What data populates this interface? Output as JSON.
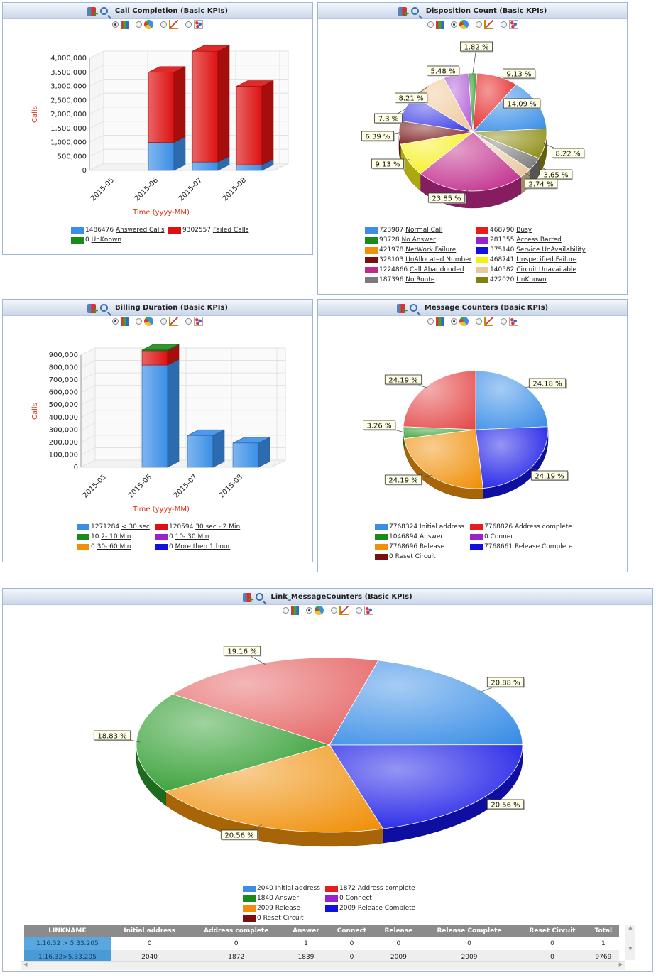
{
  "toolbar": {
    "add_icon": "add-chart-icon",
    "zoom_icon": "zoom-in-icon"
  },
  "panels": [
    {
      "id": "call_completion",
      "title": "Call Completion (Basic KPIs)"
    },
    {
      "id": "disposition_count",
      "title": "Disposition Count (Basic KPIs)"
    },
    {
      "id": "billing_duration",
      "title": "Billing Duration (Basic KPIs)"
    },
    {
      "id": "message_counters",
      "title": "Message Counters (Basic KPIs)"
    },
    {
      "id": "link_message_counters",
      "title": "Link_MessageCounters (Basic KPIs)"
    }
  ],
  "chart_types": [
    "bar",
    "pie",
    "line",
    "scatter"
  ],
  "chart_data": [
    {
      "type": "bar",
      "stacked": true,
      "title": "Call Completion (Basic KPIs)",
      "xlabel": "Time (yyyy-MM)",
      "ylabel": "Calls",
      "categories": [
        "2015-05",
        "2015-06",
        "2015-07",
        "2015-08"
      ],
      "ylim": [
        0,
        4000000
      ],
      "yticks": [
        "0",
        "500,000",
        "1,000,000",
        "1,500,000",
        "2,000,000",
        "2,500,000",
        "3,000,000",
        "3,500,000",
        "4,000,000"
      ],
      "series": [
        {
          "name": "Answered Calls",
          "color": "#3a8ee6",
          "values": [
            0,
            1000000,
            300000,
            200000
          ]
        },
        {
          "name": "Failed Calls",
          "color": "#dd1111",
          "values": [
            0,
            2500000,
            3950000,
            2800000
          ]
        },
        {
          "name": "UnKnown",
          "color": "#1a8a1a",
          "values": [
            0,
            0,
            0,
            0
          ]
        }
      ],
      "legend": [
        {
          "value": "1486476",
          "name": "Answered Calls",
          "color": "#3a8ee6"
        },
        {
          "value": "9302557",
          "name": "Failed Calls",
          "color": "#dd1111"
        },
        {
          "value": "0",
          "name": "UnKnown",
          "color": "#1a8a1a"
        }
      ]
    },
    {
      "type": "pie",
      "title": "Disposition Count (Basic KPIs)",
      "slices": [
        {
          "name": "Busy",
          "value": 468790,
          "label": "9.13 %",
          "color": "#e51d1d"
        },
        {
          "name": "Normal Call",
          "value": 723987,
          "label": "14.09 %",
          "color": "#3a8ee6"
        },
        {
          "name": "UnKnown",
          "value": 422020,
          "label": "8.22 %",
          "color": "#8b8b10"
        },
        {
          "name": "No Route",
          "value": 187396,
          "label": "3.65 %",
          "color": "#7a7a7a"
        },
        {
          "name": "Circuit Unavailable",
          "value": 140582,
          "label": "2.74 %",
          "color": "#e8c79a"
        },
        {
          "name": "Call Abandonded",
          "value": 1224866,
          "label": "23.85 %",
          "color": "#c02a8a"
        },
        {
          "name": "Unspecified Failure",
          "value": 468741,
          "label": "9.13 %",
          "color": "#f5f014"
        },
        {
          "name": "UnAllocated Number",
          "value": 328103,
          "label": "6.39 %",
          "color": "#7a1a1a"
        },
        {
          "name": "Service UnAvailability",
          "value": 375140,
          "label": "7.3 %",
          "color": "#3a3ae6"
        },
        {
          "name": "NetWork Failure",
          "value": 421978,
          "label": "8.21 %",
          "color": "#f0c898"
        },
        {
          "name": "Access Barred",
          "value": 281355,
          "label": "5.48 %",
          "color": "#b05ad8"
        },
        {
          "name": "No Answer",
          "value": 93728,
          "label": "1.82 %",
          "color": "#1a8a1a"
        }
      ],
      "legend": [
        {
          "value": "723987",
          "name": "Normal Call",
          "color": "#3a8ee6"
        },
        {
          "value": "468790",
          "name": "Busy",
          "color": "#e51d1d"
        },
        {
          "value": "93728",
          "name": "No Answer",
          "color": "#1a8a1a"
        },
        {
          "value": "281355",
          "name": "Access Barred",
          "color": "#9a22cc"
        },
        {
          "value": "421978",
          "name": "NetWork Failure",
          "color": "#f0900a"
        },
        {
          "value": "375140",
          "name": "Service UnAvailability",
          "color": "#1010e0"
        },
        {
          "value": "328103",
          "name": "UnAllocated Number",
          "color": "#7a0f0f"
        },
        {
          "value": "468741",
          "name": "Unspecified Failure",
          "color": "#f5f014"
        },
        {
          "value": "1224866",
          "name": "Call Abandonded",
          "color": "#c02a8a"
        },
        {
          "value": "140582",
          "name": "Circuit Unavailable",
          "color": "#e8c79a"
        },
        {
          "value": "187396",
          "name": "No Route",
          "color": "#7a7a7a"
        },
        {
          "value": "422020",
          "name": "UnKnown",
          "color": "#808010"
        }
      ]
    },
    {
      "type": "bar",
      "stacked": true,
      "title": "Billing Duration (Basic KPIs)",
      "xlabel": "Time (yyyy-MM)",
      "ylabel": "Calls",
      "categories": [
        "2015-05",
        "2015-06",
        "2015-07",
        "2015-08"
      ],
      "ylim": [
        0,
        900000
      ],
      "yticks": [
        "0",
        "100,000",
        "200,000",
        "300,000",
        "400,000",
        "500,000",
        "600,000",
        "700,000",
        "800,000",
        "900,000"
      ],
      "series": [
        {
          "name": "< 30 sec",
          "color": "#3a8ee6",
          "values": [
            0,
            820000,
            255000,
            195000
          ]
        },
        {
          "name": "30 sec - 2 Min",
          "color": "#dd1111",
          "values": [
            0,
            115000,
            0,
            0
          ]
        },
        {
          "name": "2- 10 Min",
          "color": "#1a8a1a",
          "values": [
            0,
            10,
            0,
            0
          ]
        }
      ],
      "legend": [
        {
          "value": "1271284",
          "name": "< 30 sec",
          "color": "#3a8ee6"
        },
        {
          "value": "120594",
          "name": "30 sec - 2 Min",
          "color": "#dd1111"
        },
        {
          "value": "10",
          "name": "2- 10 Min",
          "color": "#1a8a1a"
        },
        {
          "value": "0",
          "name": "10- 30 Min",
          "color": "#9a22cc"
        },
        {
          "value": "0",
          "name": "30- 60 Min",
          "color": "#f0900a"
        },
        {
          "value": "0",
          "name": "More then 1 hour",
          "color": "#1010e0"
        }
      ]
    },
    {
      "type": "pie",
      "title": "Message Counters (Basic KPIs)",
      "slices": [
        {
          "name": "Initial address",
          "value": 7768324,
          "label": "24.18 %",
          "color": "#3a8ee6"
        },
        {
          "name": "Release Complete",
          "value": 7768661,
          "label": "24.19 %",
          "color": "#1414e6"
        },
        {
          "name": "Release",
          "value": 7768696,
          "label": "24.19 %",
          "color": "#f0900a"
        },
        {
          "name": "Answer",
          "value": 1046894,
          "label": "3.26 %",
          "color": "#2a9a2a"
        },
        {
          "name": "Address complete",
          "value": 7768826,
          "label": "24.19 %",
          "color": "#e54a4a"
        }
      ],
      "legend": [
        {
          "value": "7768324",
          "name": "Initial address",
          "color": "#3a8ee6"
        },
        {
          "value": "7768826",
          "name": "Address complete",
          "color": "#e51d1d"
        },
        {
          "value": "1046894",
          "name": "Answer",
          "color": "#1a8a1a"
        },
        {
          "value": "0",
          "name": "Connect",
          "color": "#9a22cc"
        },
        {
          "value": "7768696",
          "name": "Release",
          "color": "#f0900a"
        },
        {
          "value": "7768661",
          "name": "Release Complete",
          "color": "#1010e0"
        },
        {
          "value": "0",
          "name": "Reset Circuit",
          "color": "#7a0f0f"
        }
      ]
    },
    {
      "type": "pie",
      "title": "Link_MessageCounters (Basic KPIs)",
      "slices": [
        {
          "name": "Initial address",
          "value": 2040,
          "label": "20.88 %",
          "color": "#3a8ee6"
        },
        {
          "name": "Release Complete",
          "value": 2009,
          "label": "20.56 %",
          "color": "#1414e6"
        },
        {
          "name": "Release",
          "value": 2009,
          "label": "20.56 %",
          "color": "#f0900a"
        },
        {
          "name": "Answer",
          "value": 1840,
          "label": "18.83 %",
          "color": "#2a9a2a"
        },
        {
          "name": "Address complete",
          "value": 1872,
          "label": "19.16 %",
          "color": "#e56060"
        }
      ],
      "legend": [
        {
          "value": "2040",
          "name": "Initial address",
          "color": "#3a8ee6"
        },
        {
          "value": "1872",
          "name": "Address complete",
          "color": "#e51d1d"
        },
        {
          "value": "1840",
          "name": "Answer",
          "color": "#1a8a1a"
        },
        {
          "value": "0",
          "name": "Connect",
          "color": "#9a22cc"
        },
        {
          "value": "2009",
          "name": "Release",
          "color": "#f0900a"
        },
        {
          "value": "2009",
          "name": "Release Complete",
          "color": "#1010e0"
        },
        {
          "value": "0",
          "name": "Reset Circuit",
          "color": "#7a0f0f"
        }
      ]
    }
  ],
  "table": {
    "columns": [
      "LINKNAME",
      "Initial address",
      "Address complete",
      "Answer",
      "Connect",
      "Release",
      "Release Complete",
      "Reset Circuit",
      "Total"
    ],
    "rows": [
      [
        "1.16.32 > 5.33.205",
        "0",
        "0",
        "1",
        "0",
        "0",
        "0",
        "0",
        "1"
      ],
      [
        "1.16.32>5.33.205",
        "2040",
        "1872",
        "1839",
        "0",
        "2009",
        "2009",
        "0",
        "9769"
      ]
    ]
  }
}
